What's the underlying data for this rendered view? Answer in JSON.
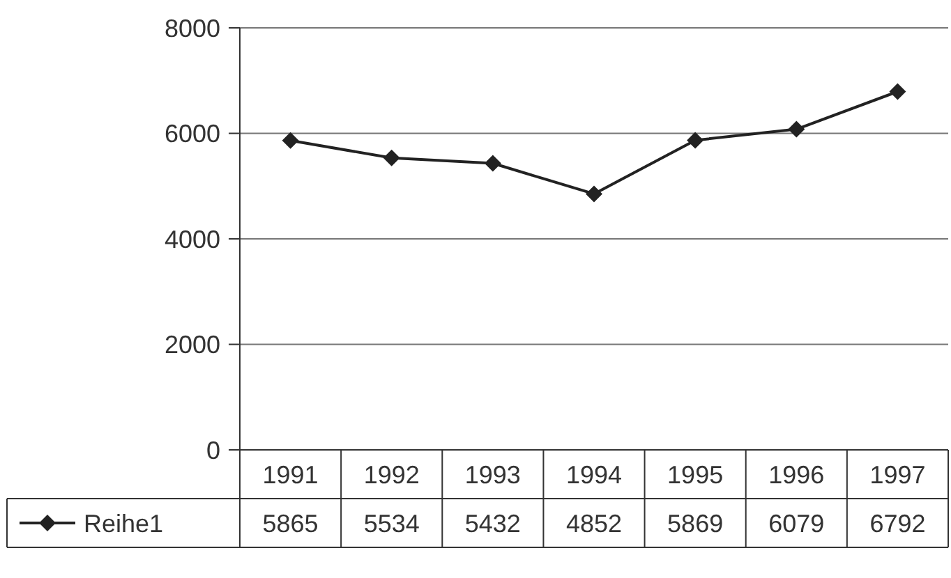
{
  "chart_data": {
    "type": "line",
    "categories": [
      "1991",
      "1992",
      "1993",
      "1994",
      "1995",
      "1996",
      "1997"
    ],
    "series": [
      {
        "name": "Reihe1",
        "color": "#222222",
        "values": [
          5865,
          5534,
          5432,
          4852,
          5869,
          6079,
          6792
        ]
      }
    ],
    "ylim": [
      0,
      8000
    ],
    "yticks": [
      0,
      2000,
      4000,
      6000,
      8000
    ],
    "grid": "y",
    "marker": "diamond",
    "line_style": "solid",
    "legend": "bottom",
    "data_labels": true
  }
}
